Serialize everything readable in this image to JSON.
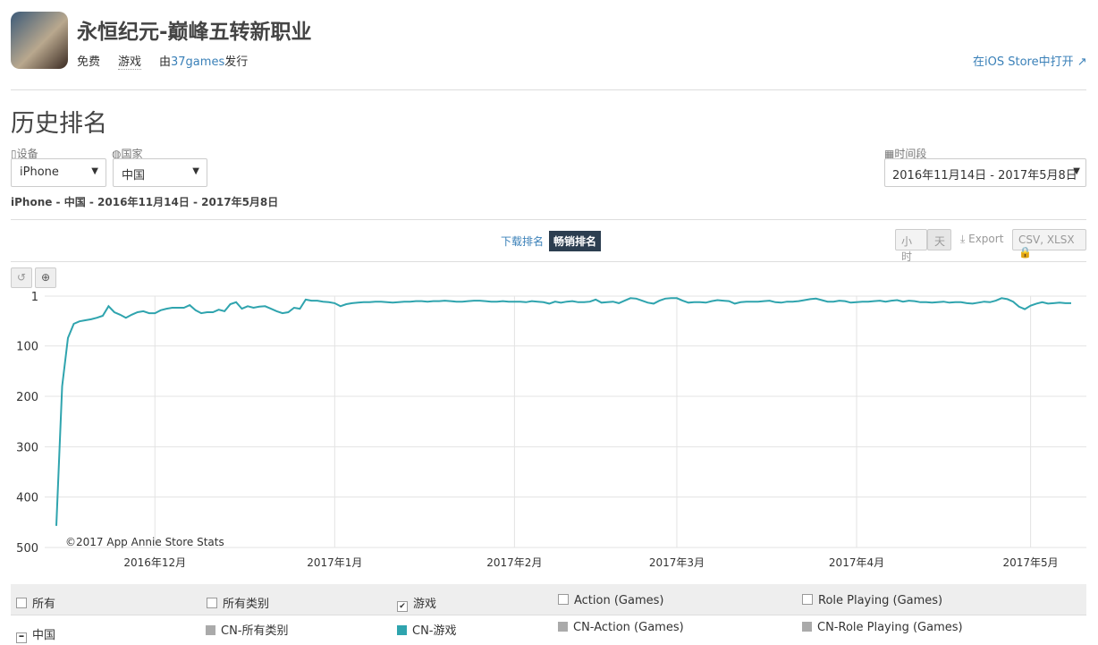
{
  "header": {
    "title": "永恒纪元-巅峰五转新职业",
    "price": "免费",
    "category": "游戏",
    "publisher_prefix": "由",
    "publisher": "37games",
    "publisher_suffix": "发行",
    "store_link": "在iOS Store中打开"
  },
  "section_title": "历史排名",
  "filters": {
    "device_label": "设备",
    "device": "iPhone",
    "country_label": "国家",
    "country": "中国",
    "period_label": "时间段",
    "period": "2016年11月14日 - 2017年5月8日"
  },
  "summary": "iPhone - 中国 - 2016年11月14日 - 2017年5月8日",
  "tabs": [
    "下载排名",
    "畅销排名"
  ],
  "granularity": [
    "小时",
    "天"
  ],
  "export": "Export",
  "export_formats": "CSV, XLSX",
  "chart_data": {
    "type": "line",
    "annotation": "©2017 App Annie Store Stats",
    "categories": [
      null,
      null,
      null,
      null,
      null,
      null,
      null,
      null,
      null,
      null,
      null,
      null,
      null,
      null,
      null,
      null,
      null,
      "2016年12月",
      null,
      null,
      null,
      null,
      null,
      null,
      null,
      null,
      null,
      null,
      null,
      null,
      null,
      null,
      null,
      null,
      null,
      null,
      null,
      null,
      null,
      null,
      null,
      null,
      null,
      null,
      null,
      null,
      null,
      null,
      "2017年1月",
      null,
      null,
      null,
      null,
      null,
      null,
      null,
      null,
      null,
      null,
      null,
      null,
      null,
      null,
      null,
      null,
      null,
      null,
      null,
      null,
      null,
      null,
      null,
      null,
      null,
      null,
      null,
      null,
      null,
      null,
      "2017年2月",
      null,
      null,
      null,
      null,
      null,
      null,
      null,
      null,
      null,
      null,
      null,
      null,
      null,
      null,
      null,
      null,
      null,
      null,
      null,
      null,
      null,
      null,
      null,
      null,
      null,
      null,
      null,
      "2017年3月",
      null,
      null,
      null,
      null,
      null,
      null,
      null,
      null,
      null,
      null,
      null,
      null,
      null,
      null,
      null,
      null,
      null,
      null,
      null,
      null,
      null,
      null,
      null,
      null,
      null,
      null,
      null,
      null,
      null,
      null,
      "2017年4月",
      null,
      null,
      null,
      null,
      null,
      null,
      null,
      null,
      null,
      null,
      null,
      null,
      null,
      null,
      null,
      null,
      null,
      null,
      null,
      null,
      null,
      null,
      null,
      null,
      null,
      null,
      null,
      null,
      null,
      "2017年5月",
      null,
      null,
      null,
      null,
      null,
      null,
      null
    ],
    "series": [
      {
        "name": "CN-游戏",
        "color": "#2fa4ae",
        "values": [
          457,
          180,
          84,
          56,
          51,
          49,
          47,
          44,
          40,
          21,
          33,
          38,
          44,
          38,
          33,
          31,
          35,
          35,
          29,
          26,
          24,
          24,
          24,
          19,
          29,
          35,
          33,
          33,
          28,
          31,
          17,
          13,
          26,
          21,
          24,
          22,
          21,
          26,
          31,
          35,
          33,
          24,
          26,
          8,
          10,
          10,
          12,
          13,
          15,
          21,
          17,
          15,
          14,
          13,
          13,
          12,
          12,
          13,
          14,
          13,
          12,
          12,
          11,
          11,
          12,
          11,
          11,
          10,
          11,
          12,
          12,
          11,
          10,
          10,
          11,
          12,
          12,
          11,
          12,
          12,
          12,
          13,
          11,
          12,
          13,
          16,
          12,
          14,
          12,
          11,
          13,
          13,
          12,
          8,
          14,
          13,
          12,
          15,
          10,
          5,
          6,
          10,
          14,
          16,
          10,
          6,
          5,
          5,
          10,
          14,
          13,
          13,
          14,
          11,
          9,
          10,
          11,
          16,
          13,
          12,
          12,
          12,
          11,
          10,
          13,
          14,
          12,
          12,
          11,
          9,
          7,
          6,
          9,
          12,
          12,
          10,
          11,
          14,
          13,
          12,
          12,
          11,
          10,
          12,
          10,
          9,
          12,
          10,
          11,
          13,
          13,
          14,
          13,
          12,
          14,
          13,
          13,
          15,
          16,
          14,
          12,
          13,
          10,
          5,
          7,
          12,
          22,
          27,
          20,
          16,
          13,
          16,
          15,
          14,
          15,
          15
        ]
      }
    ],
    "ylim": [
      500,
      1
    ],
    "yticks": [
      1,
      100,
      200,
      300,
      400,
      500
    ],
    "grid": true
  },
  "legend": {
    "filters": [
      "所有",
      "所有类别",
      "游戏",
      "Action (Games)",
      "Role Playing (Games)"
    ],
    "row_label": "中国",
    "series": [
      "CN-所有类别",
      "CN-Action (Games)",
      "CN-Role Playing (Games)"
    ]
  }
}
